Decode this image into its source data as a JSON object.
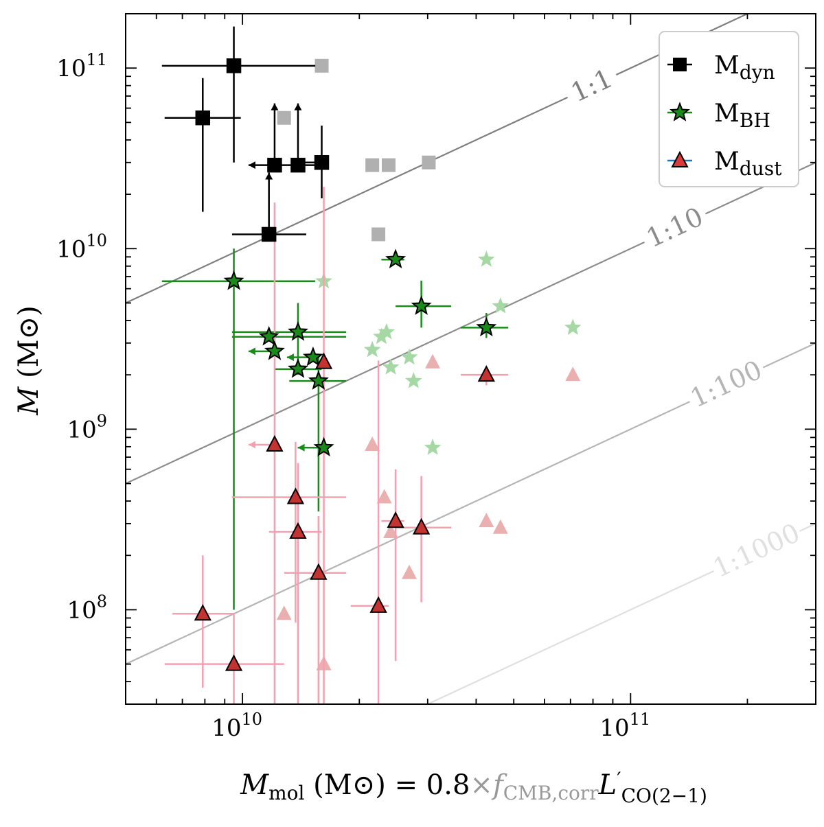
{
  "chart_data": {
    "type": "scatter",
    "xscale": "log",
    "yscale": "log",
    "xlim": [
      5000000000,
      300000000000
    ],
    "ylim": [
      30000000,
      200000000000
    ],
    "xticks": [
      {
        "value": 10000000000,
        "base": "10",
        "exp": "10"
      },
      {
        "value": 100000000000,
        "base": "10",
        "exp": "11"
      }
    ],
    "yticks": [
      {
        "value": 100000000,
        "base": "10",
        "exp": "8"
      },
      {
        "value": 1000000000,
        "base": "10",
        "exp": "9"
      },
      {
        "value": 10000000000,
        "base": "10",
        "exp": "10"
      },
      {
        "value": 100000000000,
        "base": "10",
        "exp": "11"
      }
    ],
    "xlabel": {
      "m": "M",
      "sub": "mol",
      "unit_open": " (M",
      "sun": "⊙",
      "unit_close": ") = 0.8",
      "times": "×",
      "f": "f",
      "f_sub": "CMB,corr",
      "l": "L",
      "prime": "′",
      "l_sub": "CO(2−1)"
    },
    "ylabel": {
      "m": "M",
      "unit_open": " (M",
      "sun": "⊙",
      "unit_close": ")"
    },
    "ratio_lines": [
      {
        "label": "1:1",
        "ratio": 1,
        "color": "#7f7f7f"
      },
      {
        "label": "1:10",
        "ratio": 0.1,
        "color": "#8c8c8c"
      },
      {
        "label": "1:100",
        "ratio": 0.01,
        "color": "#b5b5b5"
      },
      {
        "label": "1:1000",
        "ratio": 0.001,
        "color": "#e0e0e0"
      }
    ],
    "legend": [
      {
        "name": "M",
        "sub": "dyn",
        "marker": "square",
        "color": "#000000",
        "line": "#000000"
      },
      {
        "name": "M",
        "sub": "BH",
        "marker": "star",
        "color": "#1a8a1a",
        "line": "#1a8a1a"
      },
      {
        "name": "M",
        "sub": "dust",
        "marker": "triangle",
        "color": "#d93a3a",
        "line": "#1f77b4"
      }
    ],
    "series": [
      {
        "name": "Mdyn",
        "marker": "square",
        "color": "#000000",
        "errcolor": "#000000",
        "points": [
          {
            "x": 7900000000,
            "y": 53000000000,
            "xerr": [
              6300000000,
              9900000000
            ],
            "yerr": [
              16000000000,
              88000000000
            ]
          },
          {
            "x": 9500000000,
            "y": 103000000000,
            "xerr": [
              6200000000,
              15400000000
            ],
            "yerr": [
              30000000000,
              170000000000
            ]
          },
          {
            "x": 11700000000,
            "y": 12000000000,
            "xerr": [
              9400000000,
              14600000000
            ],
            "yup": true
          },
          {
            "x": 12100000000,
            "y": 29000000000,
            "xul": true,
            "yup": true
          },
          {
            "x": 13900000000,
            "y": 29000000000,
            "xerr": [
              12100000000,
              16000000000
            ],
            "yup": true
          },
          {
            "x": 16000000000,
            "y": 30000000000,
            "xerr": [
              13900000000,
              16000000000
            ],
            "yerr": [
              19000000000,
              48000000000
            ]
          }
        ]
      },
      {
        "name": "Mdyn (faded)",
        "marker": "square",
        "color": "#b0b0b0",
        "points": [
          {
            "x": 12800000000,
            "y": 53000000000
          },
          {
            "x": 16000000000,
            "y": 103000000000
          },
          {
            "x": 21600000000,
            "y": 29000000000
          },
          {
            "x": 23800000000,
            "y": 29000000000
          },
          {
            "x": 30200000000,
            "y": 30000000000
          },
          {
            "x": 22400000000,
            "y": 12000000000
          }
        ]
      },
      {
        "name": "MBH",
        "marker": "star",
        "color": "#1a8a1a",
        "errcolor": "#1a8a1a",
        "points": [
          {
            "x": 9500000000,
            "y": 6600000000,
            "xerr": [
              6200000000,
              15400000000
            ],
            "yerr": [
              100000000,
              10000000000
            ]
          },
          {
            "x": 11700000000,
            "y": 3250000000,
            "xerr": [
              9400000000,
              18500000000
            ]
          },
          {
            "x": 12100000000,
            "y": 2700000000,
            "xul": true
          },
          {
            "x": 13900000000,
            "y": 3450000000,
            "xerr": [
              9400000000,
              18500000000
            ],
            "yerr": [
              2000000000,
              5000000000
            ]
          },
          {
            "x": 13900000000,
            "y": 2150000000,
            "xerr": [
              12100000000,
              16000000000
            ]
          },
          {
            "x": 15200000000,
            "y": 2500000000,
            "xul": true
          },
          {
            "x": 15700000000,
            "y": 1850000000,
            "xerr": [
              13200000000,
              18500000000
            ],
            "yerr": [
              350000000,
              2600000000
            ]
          },
          {
            "x": 16200000000,
            "y": 790000000,
            "xul": true
          },
          {
            "x": 24800000000,
            "y": 8700000000,
            "xerr": [
              22800000000,
              26100000000
            ]
          },
          {
            "x": 28900000000,
            "y": 4800000000,
            "xerr": [
              24800000000,
              34500000000
            ],
            "yerr": [
              3650000000,
              6650000000
            ]
          },
          {
            "x": 42500000000,
            "y": 3650000000,
            "xerr": [
              36500000000,
              48400000000
            ],
            "yerr": [
              3200000000,
              4400000000
            ]
          }
        ]
      },
      {
        "name": "MBH (faded)",
        "marker": "star",
        "color": "#a6d8a6",
        "points": [
          {
            "x": 16200000000,
            "y": 6600000000
          },
          {
            "x": 21600000000,
            "y": 2750000000
          },
          {
            "x": 22800000000,
            "y": 3250000000
          },
          {
            "x": 23500000000,
            "y": 3450000000
          },
          {
            "x": 24100000000,
            "y": 2200000000
          },
          {
            "x": 26900000000,
            "y": 2500000000
          },
          {
            "x": 27600000000,
            "y": 1850000000
          },
          {
            "x": 30900000000,
            "y": 790000000
          },
          {
            "x": 42500000000,
            "y": 8700000000
          },
          {
            "x": 46200000000,
            "y": 4800000000
          },
          {
            "x": 71000000000,
            "y": 3650000000
          }
        ]
      },
      {
        "name": "Mdust",
        "marker": "triangle",
        "color": "#c43232",
        "errcolor": "#f5a0b0",
        "points": [
          {
            "x": 7900000000,
            "y": 95000000,
            "xerr": [
              6600000000,
              9500000000
            ],
            "yerr": [
              37000000,
              200000000
            ]
          },
          {
            "x": 9500000000,
            "y": 50000000,
            "xerr": [
              6300000000,
              12800000000
            ],
            "yerr": [
              30000000,
              95000000
            ]
          },
          {
            "x": 12100000000,
            "y": 820000000,
            "xul": true,
            "yerr": [
              30000000,
              18000000000
            ]
          },
          {
            "x": 13700000000,
            "y": 420000000,
            "xerr": [
              9400000000,
              18500000000
            ],
            "yerr": [
              85000000,
              850000000
            ]
          },
          {
            "x": 13900000000,
            "y": 270000000,
            "xerr": [
              11700000000,
              16000000000
            ],
            "yerr": [
              30000000,
              650000000
            ]
          },
          {
            "x": 15700000000,
            "y": 160000000,
            "xerr": [
              12800000000,
              18500000000
            ],
            "yerr": [
              30000000,
              330000000
            ]
          },
          {
            "x": 16200000000,
            "y": 2350000000,
            "yerr": [
              30000000,
              22000000000
            ]
          },
          {
            "x": 22400000000,
            "y": 105000000,
            "xerr": [
              19000000000,
              23800000000
            ],
            "yerr": [
              30000000,
              2400000000
            ]
          },
          {
            "x": 24800000000,
            "y": 310000000,
            "xerr": [
              22800000000,
              26100000000
            ],
            "yerr": [
              52000000,
              600000000
            ]
          },
          {
            "x": 28900000000,
            "y": 285000000,
            "xerr": [
              24800000000,
              34500000000
            ],
            "yerr": [
              110000000,
              550000000
            ]
          },
          {
            "x": 42500000000,
            "y": 2000000000,
            "xerr": [
              36500000000,
              48400000000
            ],
            "yerr": [
              1750000000,
              2150000000
            ]
          }
        ]
      },
      {
        "name": "Mdust (faded)",
        "marker": "triangle",
        "color": "#eab0b0",
        "points": [
          {
            "x": 12800000000,
            "y": 95000000
          },
          {
            "x": 16200000000,
            "y": 50000000
          },
          {
            "x": 21600000000,
            "y": 820000000
          },
          {
            "x": 23200000000,
            "y": 420000000
          },
          {
            "x": 24100000000,
            "y": 270000000
          },
          {
            "x": 26900000000,
            "y": 160000000
          },
          {
            "x": 30900000000,
            "y": 2350000000
          },
          {
            "x": 42500000000,
            "y": 310000000
          },
          {
            "x": 46200000000,
            "y": 285000000
          },
          {
            "x": 71000000000,
            "y": 2000000000
          }
        ]
      }
    ]
  }
}
